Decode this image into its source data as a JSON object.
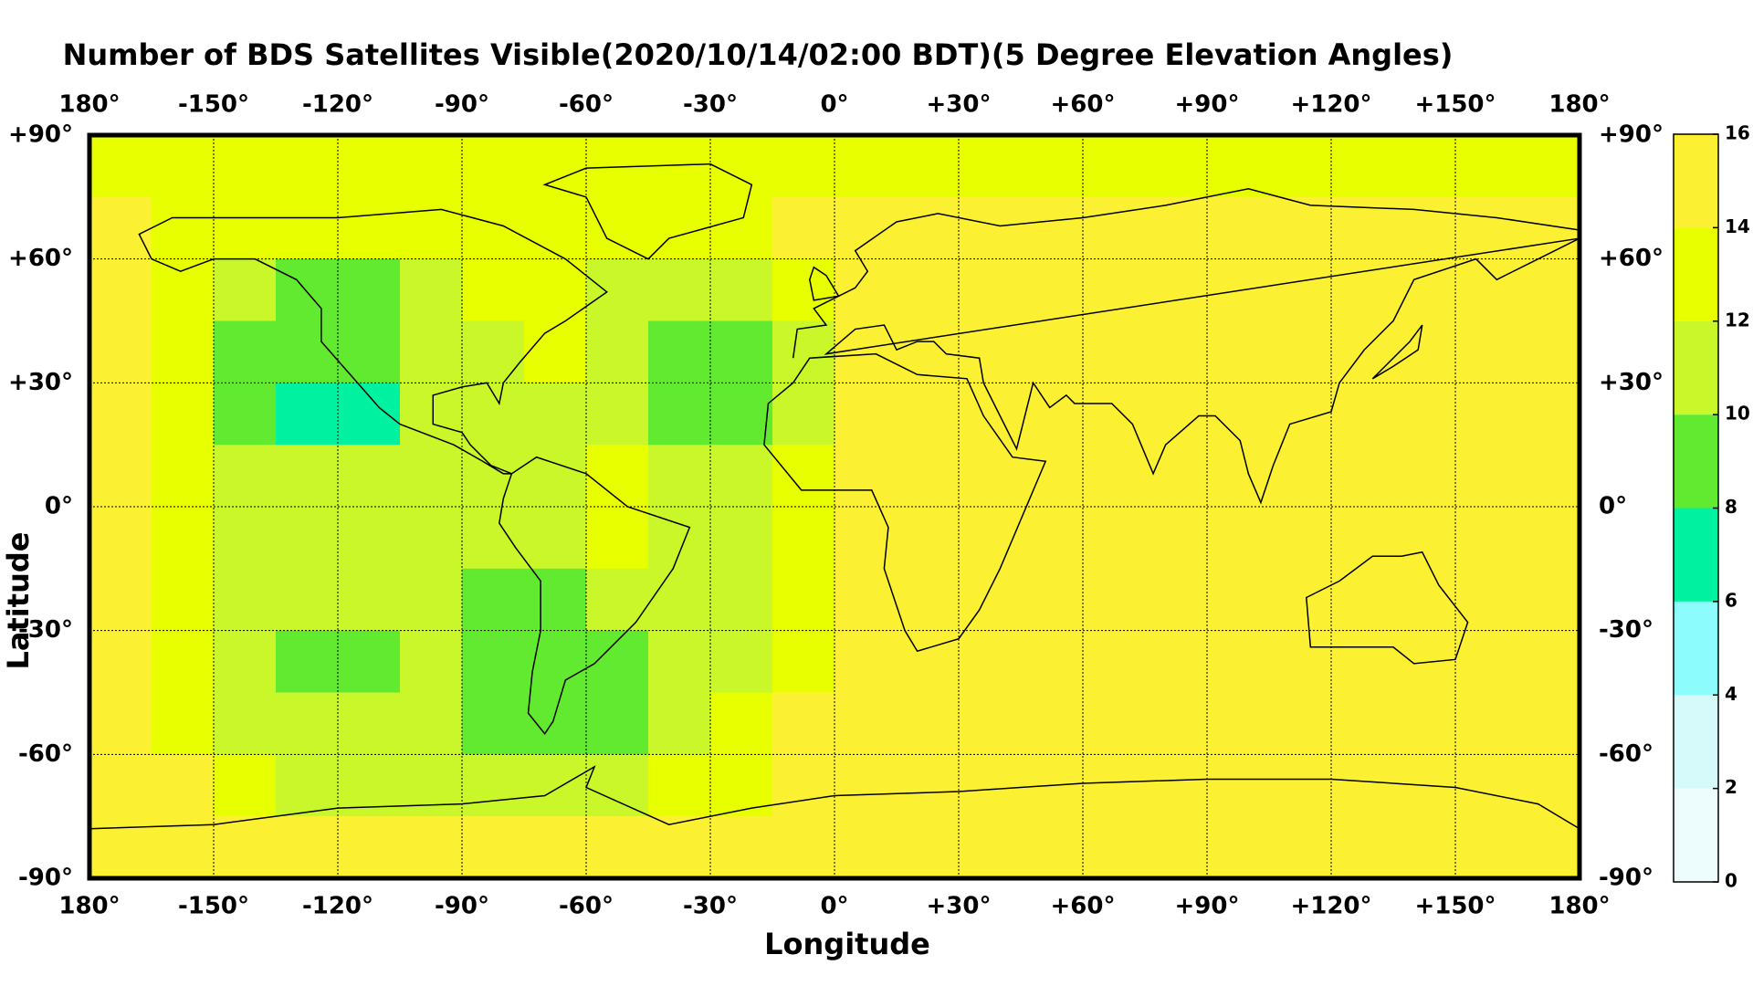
{
  "chart_data": {
    "type": "heatmap",
    "title": "Number of BDS Satellites Visible(2020/10/14/02:00 BDT)(5 Degree Elevation Angles)",
    "xlabel": "Longitude",
    "ylabel": "Latitude",
    "xlim": [
      -180,
      180
    ],
    "ylim": [
      -90,
      90
    ],
    "xticks": [
      {
        "value": -180,
        "label": "180°"
      },
      {
        "value": -150,
        "label": "-150°"
      },
      {
        "value": -120,
        "label": "-120°"
      },
      {
        "value": -90,
        "label": "-90°"
      },
      {
        "value": -60,
        "label": "-60°"
      },
      {
        "value": -30,
        "label": "-30°"
      },
      {
        "value": 0,
        "label": "0°"
      },
      {
        "value": 30,
        "label": "+30°"
      },
      {
        "value": 60,
        "label": "+60°"
      },
      {
        "value": 90,
        "label": "+90°"
      },
      {
        "value": 120,
        "label": "+120°"
      },
      {
        "value": 150,
        "label": "+150°"
      },
      {
        "value": 180,
        "label": "180°"
      }
    ],
    "yticks": [
      {
        "value": 90,
        "label": "+90°"
      },
      {
        "value": 60,
        "label": "+60°"
      },
      {
        "value": 30,
        "label": "+30°"
      },
      {
        "value": 0,
        "label": "0°"
      },
      {
        "value": -30,
        "label": "-30°"
      },
      {
        "value": -60,
        "label": "-60°"
      },
      {
        "value": -90,
        "label": "-90°"
      }
    ],
    "grid": true,
    "xbins": [
      -180,
      -165,
      -150,
      -135,
      -120,
      -105,
      -90,
      -75,
      -60,
      -45,
      -30,
      -15,
      0,
      15,
      30,
      45,
      60,
      75,
      90,
      105,
      120,
      135,
      150,
      165,
      180
    ],
    "ybins": [
      90,
      75,
      60,
      45,
      30,
      15,
      0,
      -15,
      -30,
      -45,
      -60,
      -75,
      -90
    ],
    "values": [
      [
        13,
        13,
        13,
        13,
        13,
        13,
        13,
        13,
        13,
        13,
        13,
        13,
        13,
        13,
        13,
        13,
        13,
        13,
        13,
        13,
        13,
        13,
        13,
        13
      ],
      [
        15,
        13,
        13,
        13,
        13,
        13,
        13,
        13,
        13,
        13,
        13,
        15,
        15,
        15,
        15,
        15,
        15,
        15,
        15,
        15,
        15,
        15,
        15,
        15
      ],
      [
        15,
        13,
        11,
        9,
        9,
        11,
        13,
        13,
        11,
        11,
        11,
        13,
        15,
        15,
        15,
        15,
        15,
        15,
        15,
        15,
        15,
        15,
        15,
        15
      ],
      [
        15,
        13,
        9,
        9,
        9,
        11,
        11,
        13,
        11,
        9,
        9,
        11,
        15,
        15,
        15,
        15,
        15,
        15,
        15,
        15,
        15,
        15,
        15,
        15
      ],
      [
        15,
        13,
        9,
        7,
        7,
        11,
        11,
        11,
        11,
        9,
        9,
        11,
        15,
        15,
        15,
        15,
        15,
        15,
        15,
        15,
        15,
        15,
        15,
        15
      ],
      [
        15,
        13,
        11,
        11,
        11,
        11,
        11,
        11,
        13,
        11,
        11,
        13,
        15,
        15,
        15,
        15,
        15,
        15,
        15,
        15,
        15,
        15,
        15,
        15
      ],
      [
        15,
        13,
        11,
        11,
        11,
        11,
        11,
        11,
        13,
        11,
        11,
        13,
        15,
        15,
        15,
        15,
        15,
        15,
        15,
        15,
        15,
        15,
        15,
        15
      ],
      [
        15,
        13,
        11,
        11,
        11,
        11,
        9,
        9,
        11,
        11,
        11,
        13,
        15,
        15,
        15,
        15,
        15,
        15,
        15,
        15,
        15,
        15,
        15,
        15
      ],
      [
        15,
        13,
        11,
        9,
        9,
        11,
        9,
        9,
        9,
        11,
        11,
        13,
        15,
        15,
        15,
        15,
        15,
        15,
        15,
        15,
        15,
        15,
        15,
        15
      ],
      [
        15,
        13,
        11,
        11,
        11,
        11,
        9,
        9,
        9,
        11,
        13,
        15,
        15,
        15,
        15,
        15,
        15,
        15,
        15,
        15,
        15,
        15,
        15,
        15
      ],
      [
        15,
        15,
        13,
        11,
        11,
        11,
        11,
        11,
        11,
        13,
        13,
        15,
        15,
        15,
        15,
        15,
        15,
        15,
        15,
        15,
        15,
        15,
        15,
        15
      ],
      [
        15,
        15,
        15,
        15,
        15,
        15,
        15,
        15,
        15,
        15,
        15,
        15,
        15,
        15,
        15,
        15,
        15,
        15,
        15,
        15,
        15,
        15,
        15,
        15
      ]
    ],
    "clim": [
      0,
      16
    ],
    "colorbar_ticks": [
      0,
      2,
      4,
      6,
      8,
      10,
      12,
      14,
      16
    ],
    "colors": [
      "#edfdfd",
      "#d6fafa",
      "#8cfcfc",
      "#00f2a0",
      "#62ea30",
      "#c9f72a",
      "#e8ff00",
      "#fcf033"
    ]
  }
}
